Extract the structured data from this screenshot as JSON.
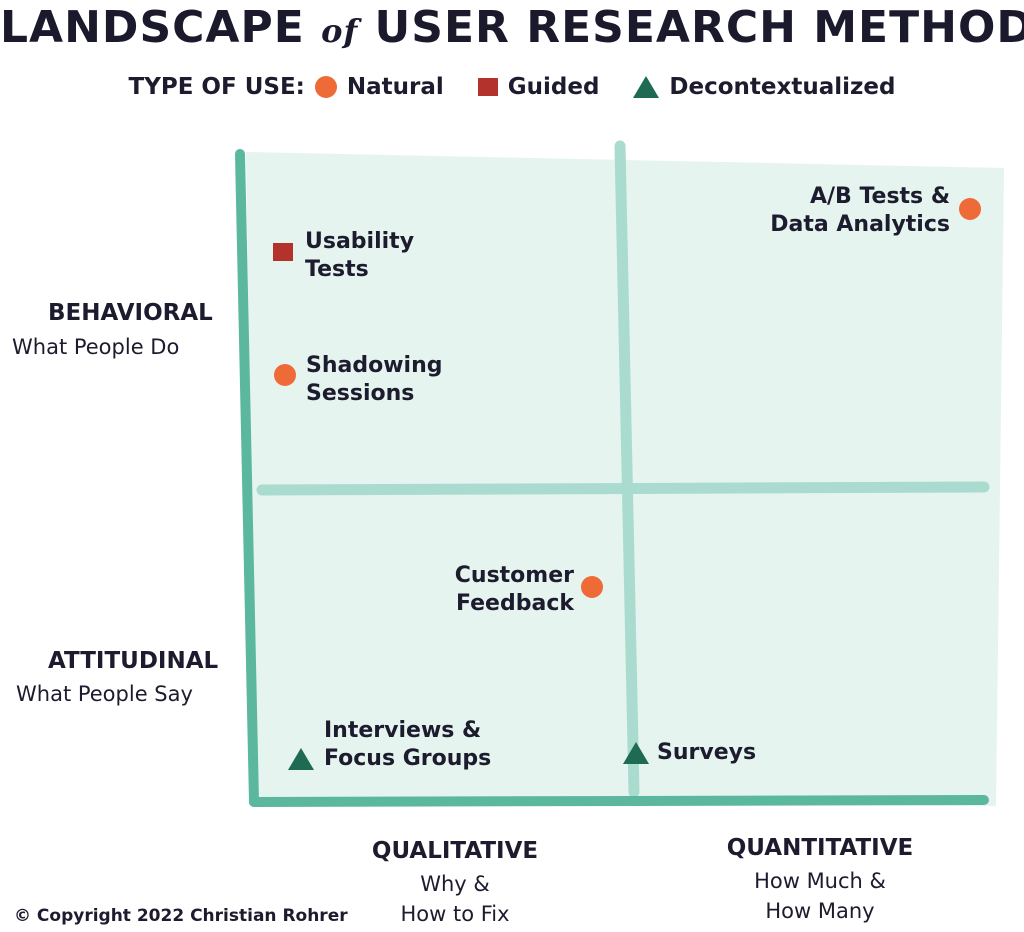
{
  "title": {
    "main_1": "LANDSCAPE",
    "connector": "of",
    "main_2": "USER RESEARCH METHODS"
  },
  "legend": {
    "label": "TYPE OF USE:",
    "items": [
      {
        "label": "Natural",
        "shape": "circle",
        "color": "#ee6a37"
      },
      {
        "label": "Guided",
        "shape": "square",
        "color": "#b3322b"
      },
      {
        "label": "Decontextualized",
        "shape": "triangle",
        "color": "#1e6a52"
      }
    ]
  },
  "rows": [
    {
      "title": "BEHAVIORAL",
      "subtitle": "What People Do"
    },
    {
      "title": "ATTITUDINAL",
      "subtitle": "What People Say"
    }
  ],
  "columns": [
    {
      "title": "QUALITATIVE",
      "subtitle_1": "Why &",
      "subtitle_2": "How to Fix"
    },
    {
      "title": "QUANTITATIVE",
      "subtitle_1": "How Much &",
      "subtitle_2": "How Many"
    }
  ],
  "methods": [
    {
      "line_1": "Usability",
      "line_2": "Tests",
      "type": "Guided"
    },
    {
      "line_1": "Shadowing",
      "line_2": "Sessions",
      "type": "Natural"
    },
    {
      "line_1": "A/B Tests &",
      "line_2": "Data Analytics",
      "type": "Natural"
    },
    {
      "line_1": "Customer",
      "line_2": "Feedback",
      "type": "Natural"
    },
    {
      "line_1": "Interviews &",
      "line_2": "Focus Groups",
      "type": "Decontextualized"
    },
    {
      "line_1": "Surveys",
      "line_2": "",
      "type": "Decontextualized"
    }
  ],
  "colors": {
    "panel_fill": "#e5f4ee",
    "axis_dark": "#5bb79e",
    "axis_light": "#a9dccf",
    "text": "#1d1b2e"
  },
  "copyright": "© Copyright 2022 Christian Rohrer"
}
